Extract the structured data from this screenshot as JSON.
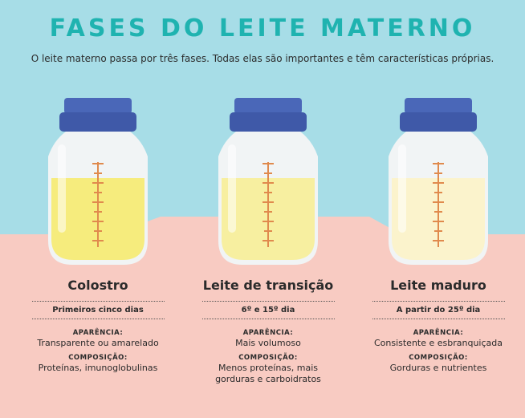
{
  "header": {
    "title": "FASES DO LEITE MATERNO",
    "subtitle": "O leite materno passa por três fases. Todas elas são importantes e têm características próprias."
  },
  "colors": {
    "sky": "#a7dde7",
    "floor": "#f8cbc2",
    "title": "#1fb3b0",
    "cap": "#4a67b8",
    "scale": "#e08a4d"
  },
  "phases": [
    {
      "name": "Colostro",
      "period": "Primeiros cinco dias",
      "appearance_label": "APARÊNCIA:",
      "appearance": "Transparente ou amarelado",
      "composition_label": "COMPOSIÇÃO:",
      "composition": "Proteínas, imunoglobulinas",
      "milk_color": "#f6ec7d"
    },
    {
      "name": "Leite de transição",
      "period": "6º e 15º dia",
      "appearance_label": "APARÊNCIA:",
      "appearance": "Mais volumoso",
      "composition_label": "COMPOSIÇÃO:",
      "composition": "Menos proteínas, mais gorduras e carboidratos",
      "milk_color": "#f7efa0"
    },
    {
      "name": "Leite maduro",
      "period": "A partir do 25º dia",
      "appearance_label": "APARÊNCIA:",
      "appearance": "Consistente e esbranquiçada",
      "composition_label": "COMPOSIÇÃO:",
      "composition": "Gorduras e nutrientes",
      "milk_color": "#fbf3cc"
    }
  ]
}
